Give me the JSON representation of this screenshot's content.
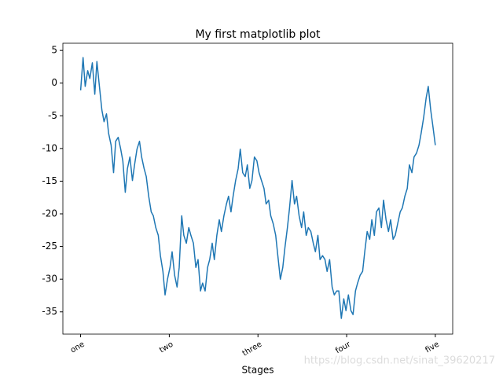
{
  "chart_data": {
    "type": "line",
    "title": "My first matplotlib plot",
    "x_label": "Stages",
    "watermark": "https://blog.csdn.net/sinat_39620217",
    "xlim": [
      -50,
      1049
    ],
    "ylim": [
      -38.4,
      6.1
    ],
    "xticks": [
      {
        "value": 0,
        "label": "one"
      },
      {
        "value": 250,
        "label": "two"
      },
      {
        "value": 500,
        "label": "three"
      },
      {
        "value": 750,
        "label": "four"
      },
      {
        "value": 1000,
        "label": "five"
      }
    ],
    "yticks": [
      -35,
      -30,
      -25,
      -20,
      -15,
      -10,
      -5,
      0,
      5
    ],
    "grid": false,
    "series": [
      {
        "color": "#1f77b4",
        "x": [
          0,
          7,
          13,
          20,
          26,
          33,
          40,
          46,
          53,
          60,
          66,
          73,
          79,
          86,
          93,
          99,
          106,
          113,
          119,
          126,
          132,
          139,
          146,
          152,
          159,
          166,
          172,
          179,
          185,
          192,
          199,
          205,
          212,
          219,
          225,
          232,
          238,
          245,
          252,
          258,
          265,
          272,
          278,
          285,
          291,
          298,
          305,
          311,
          318,
          325,
          331,
          338,
          344,
          351,
          358,
          364,
          371,
          377,
          384,
          391,
          397,
          404,
          411,
          417,
          424,
          430,
          437,
          444,
          450,
          457,
          464,
          470,
          477,
          483,
          490,
          497,
          503,
          510,
          517,
          523,
          530,
          536,
          543,
          550,
          556,
          563,
          570,
          576,
          583,
          589,
          596,
          603,
          609,
          616,
          623,
          629,
          636,
          642,
          649,
          656,
          662,
          669,
          675,
          682,
          689,
          695,
          702,
          709,
          715,
          722,
          728,
          735,
          742,
          748,
          755,
          762,
          768,
          775,
          781,
          788,
          795,
          801,
          808,
          815,
          821,
          828,
          834,
          841,
          848,
          854,
          861,
          868,
          874,
          881,
          887,
          894,
          901,
          907,
          914,
          921,
          927,
          934,
          940,
          947,
          954,
          960,
          967,
          974,
          980,
          987,
          993,
          1000
        ],
        "values": [
          -1.1,
          3.9,
          -0.5,
          1.9,
          0.7,
          3.1,
          -1.7,
          3.3,
          -0.5,
          -4.1,
          -5.9,
          -4.7,
          -7.7,
          -9.5,
          -13.7,
          -8.9,
          -8.3,
          -10.1,
          -11.9,
          -16.7,
          -13.1,
          -11.3,
          -14.9,
          -12.5,
          -10.1,
          -8.9,
          -11.3,
          -13.1,
          -14.3,
          -17.3,
          -19.7,
          -20.3,
          -22.1,
          -23.3,
          -26.4,
          -28.8,
          -32.4,
          -30.0,
          -28.2,
          -25.8,
          -29.4,
          -31.2,
          -28.2,
          -20.3,
          -23.3,
          -24.5,
          -22.1,
          -23.3,
          -24.5,
          -28.2,
          -27.0,
          -31.8,
          -30.6,
          -31.8,
          -28.2,
          -27.0,
          -24.5,
          -27.0,
          -23.3,
          -20.9,
          -22.7,
          -20.3,
          -18.5,
          -17.3,
          -19.7,
          -17.3,
          -14.9,
          -13.1,
          -10.1,
          -13.7,
          -14.3,
          -12.5,
          -16.1,
          -14.9,
          -11.3,
          -11.9,
          -13.7,
          -14.9,
          -16.1,
          -18.5,
          -17.9,
          -20.3,
          -21.5,
          -23.3,
          -26.4,
          -30.0,
          -28.2,
          -25.2,
          -22.1,
          -19.1,
          -14.9,
          -18.5,
          -17.3,
          -20.3,
          -22.1,
          -19.7,
          -23.3,
          -22.1,
          -22.7,
          -24.5,
          -25.8,
          -23.3,
          -27.0,
          -26.4,
          -27.0,
          -28.8,
          -27.0,
          -31.2,
          -32.4,
          -31.8,
          -31.8,
          -36.0,
          -33.0,
          -34.8,
          -32.4,
          -34.8,
          -35.4,
          -31.8,
          -30.6,
          -29.4,
          -28.8,
          -25.8,
          -22.7,
          -23.9,
          -20.9,
          -23.3,
          -19.7,
          -19.1,
          -22.1,
          -17.9,
          -20.9,
          -22.7,
          -20.9,
          -23.9,
          -23.3,
          -21.5,
          -19.7,
          -19.1,
          -17.3,
          -16.1,
          -12.5,
          -13.7,
          -11.3,
          -10.7,
          -9.5,
          -7.7,
          -5.3,
          -2.3,
          -0.5,
          -4.1,
          -6.5,
          -9.5
        ]
      }
    ]
  }
}
